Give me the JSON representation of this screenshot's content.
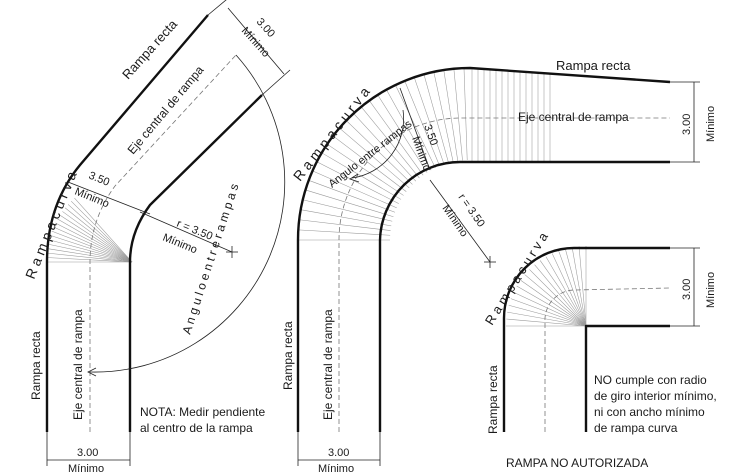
{
  "left_figure": {
    "rampa_recta_top": "Rampa recta",
    "rampa_curva": "R a m p a   c u r v a",
    "eje_central_top": "Eje central de rampa",
    "dim_top_value": "3.00",
    "dim_top_caption": "Mínimo",
    "width_value": "3.50",
    "width_caption": "Mínimo",
    "radius_value": "r = 3.50",
    "radius_caption": "Mínimo",
    "angulo": "A n g u l o   e n t r e   r a m p a s",
    "eje_central_bottom": "Eje central de rampa",
    "rampa_recta_bottom": "Rampa recta",
    "dim_bottom_value": "3.00",
    "dim_bottom_caption": "Mínimo",
    "nota_line1": "NOTA: Medir pendiente",
    "nota_line2": "al centro de la rampa"
  },
  "middle_figure": {
    "rampa_recta_top": "Rampa recta",
    "rampa_curva": "R a m p a   c u r v a",
    "eje_central_top": "Eje central de rampa",
    "dim_right_value": "3.00",
    "dim_right_caption": "Mínimo",
    "angulo": "Angulo entre rampas",
    "width_value": "3.50",
    "width_caption": "Mínimo",
    "radius_value": "r = 3.50",
    "radius_caption": "Mínimo",
    "eje_central_bottom": "Eje central de rampa",
    "rampa_recta_bottom": "Rampa recta",
    "dim_bottom_value": "3.00",
    "dim_bottom_caption": "Mínimo"
  },
  "right_figure": {
    "rampa_curva": "R a m p a   c u r v a",
    "dim_right_value": "3.00",
    "dim_right_caption": "Mínimo",
    "rampa_recta": "Rampa recta",
    "note_line1": "NO cumple con radio",
    "note_line2": "de giro interior mínimo,",
    "note_line3": "ni con ancho mínimo",
    "note_line4": "de rampa curva",
    "title": "RAMPA NO AUTORIZADA"
  }
}
